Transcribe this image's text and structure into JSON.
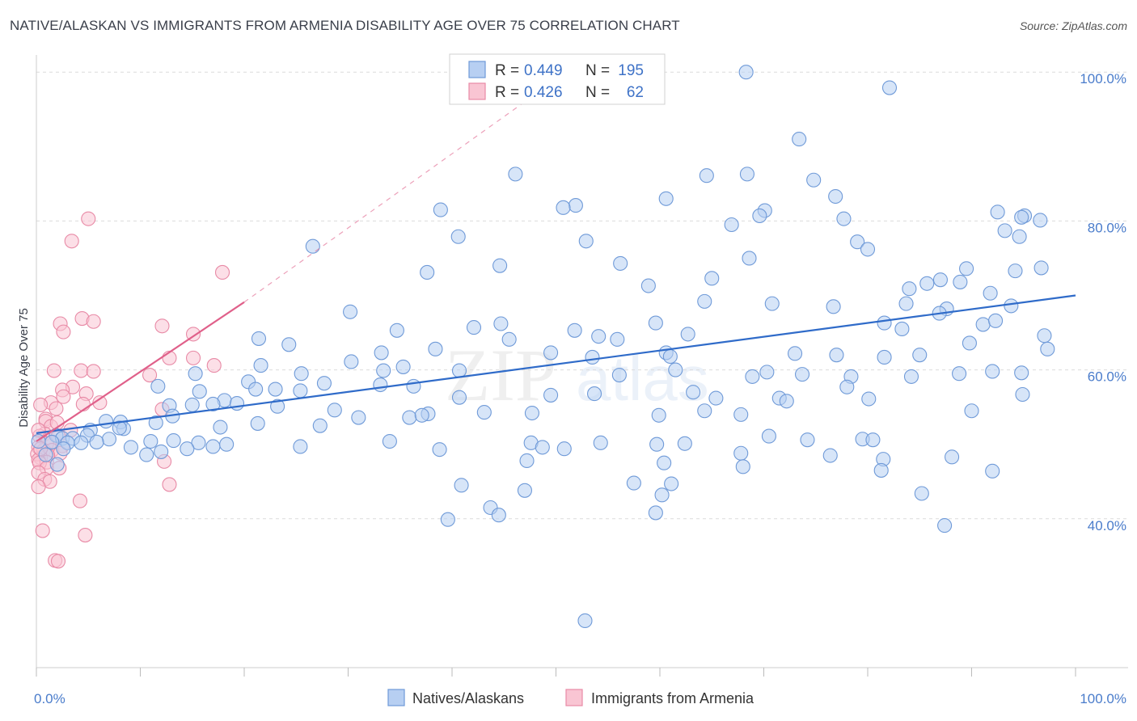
{
  "header": {
    "title": "NATIVE/ALASKAN VS IMMIGRANTS FROM ARMENIA DISABILITY AGE OVER 75 CORRELATION CHART",
    "source": "Source: ZipAtlas.com"
  },
  "colors": {
    "blue_fill": "#b7cff2",
    "blue_stroke": "#6f9ad8",
    "blue_line": "#2f6bc9",
    "pink_fill": "#f9c5d3",
    "pink_stroke": "#e88aa6",
    "pink_line": "#e0608a",
    "tick_text": "#4a7ccb",
    "grid": "#dcdcdc"
  },
  "legend": {
    "r_label": "R =",
    "n_label": "N =",
    "series": [
      {
        "r": "0.449",
        "n": "195"
      },
      {
        "r": "0.426",
        "n": "62"
      }
    ]
  },
  "bottom_legend": [
    "Natives/Alaskans",
    "Immigrants from Armenia"
  ],
  "watermark": {
    "zip": "ZIP",
    "atlas": "atlas"
  },
  "chart_data": {
    "type": "scatter",
    "title": "NATIVE/ALASKAN VS IMMIGRANTS FROM ARMENIA DISABILITY AGE OVER 75 CORRELATION CHART",
    "xlabel": "",
    "ylabel": "Disability Age Over 75",
    "xlim": [
      0,
      100
    ],
    "ylim": [
      20,
      101
    ],
    "x_tick_labels": [
      "0.0%",
      "100.0%"
    ],
    "y_ticks": [
      40,
      60,
      80,
      100
    ],
    "y_tick_labels": [
      "40.0%",
      "60.0%",
      "80.0%",
      "100.0%"
    ],
    "grid": "horizontal dashed",
    "legend_position": "top-center",
    "series": [
      {
        "name": "Natives/Alaskans",
        "color": "#6f9ad8",
        "R": 0.449,
        "N": 195,
        "trend": {
          "x": [
            0,
            100
          ],
          "y": [
            51.5,
            70.0
          ],
          "style": "solid"
        },
        "points": [
          [
            68.3,
            100
          ],
          [
            82.1,
            97.9
          ],
          [
            73.4,
            91.0
          ],
          [
            46.1,
            86.3
          ],
          [
            64.5,
            86.1
          ],
          [
            68.4,
            86.3
          ],
          [
            74.8,
            85.5
          ],
          [
            60.6,
            83.0
          ],
          [
            76.9,
            83.3
          ],
          [
            51.9,
            82.1
          ],
          [
            50.7,
            81.8
          ],
          [
            70.1,
            81.4
          ],
          [
            38.9,
            81.5
          ],
          [
            69.6,
            80.7
          ],
          [
            77.7,
            80.3
          ],
          [
            92.5,
            81.2
          ],
          [
            95.1,
            80.7
          ],
          [
            96.6,
            80.1
          ],
          [
            94.8,
            80.5
          ],
          [
            66.9,
            79.5
          ],
          [
            93.2,
            78.7
          ],
          [
            40.6,
            77.9
          ],
          [
            52.9,
            77.3
          ],
          [
            79.0,
            77.2
          ],
          [
            94.6,
            77.9
          ],
          [
            26.6,
            76.6
          ],
          [
            80.0,
            76.2
          ],
          [
            68.6,
            75.0
          ],
          [
            56.2,
            74.3
          ],
          [
            44.6,
            74.0
          ],
          [
            37.6,
            73.1
          ],
          [
            96.7,
            73.7
          ],
          [
            89.5,
            73.6
          ],
          [
            94.2,
            73.3
          ],
          [
            65.0,
            72.3
          ],
          [
            87.0,
            72.1
          ],
          [
            88.9,
            71.8
          ],
          [
            85.7,
            71.6
          ],
          [
            58.9,
            71.3
          ],
          [
            84.0,
            70.9
          ],
          [
            91.8,
            70.3
          ],
          [
            64.3,
            69.2
          ],
          [
            70.8,
            68.9
          ],
          [
            76.7,
            68.5
          ],
          [
            83.7,
            68.9
          ],
          [
            87.6,
            68.2
          ],
          [
            93.8,
            68.6
          ],
          [
            30.2,
            67.8
          ],
          [
            86.9,
            67.6
          ],
          [
            91.1,
            66.1
          ],
          [
            92.3,
            66.6
          ],
          [
            44.7,
            66.2
          ],
          [
            59.6,
            66.3
          ],
          [
            81.6,
            66.3
          ],
          [
            42.1,
            65.7
          ],
          [
            34.7,
            65.3
          ],
          [
            51.8,
            65.3
          ],
          [
            83.3,
            65.5
          ],
          [
            62.7,
            64.8
          ],
          [
            97.0,
            64.6
          ],
          [
            21.4,
            64.2
          ],
          [
            54.1,
            64.5
          ],
          [
            45.5,
            64.1
          ],
          [
            55.9,
            64.1
          ],
          [
            89.8,
            63.6
          ],
          [
            24.3,
            63.4
          ],
          [
            97.3,
            62.8
          ],
          [
            38.4,
            62.8
          ],
          [
            33.2,
            62.3
          ],
          [
            49.5,
            62.3
          ],
          [
            60.6,
            62.3
          ],
          [
            73.0,
            62.2
          ],
          [
            77.0,
            62.0
          ],
          [
            53.5,
            61.7
          ],
          [
            61.0,
            61.8
          ],
          [
            81.6,
            61.7
          ],
          [
            85.0,
            62.0
          ],
          [
            30.3,
            61.1
          ],
          [
            35.3,
            60.4
          ],
          [
            21.6,
            60.6
          ],
          [
            33.4,
            59.9
          ],
          [
            40.7,
            59.9
          ],
          [
            61.5,
            60.0
          ],
          [
            70.3,
            59.7
          ],
          [
            73.7,
            59.4
          ],
          [
            78.4,
            59.1
          ],
          [
            84.2,
            59.1
          ],
          [
            94.8,
            59.6
          ],
          [
            92.0,
            59.8
          ],
          [
            56.1,
            59.3
          ],
          [
            68.9,
            59.1
          ],
          [
            88.8,
            59.5
          ],
          [
            25.5,
            59.5
          ],
          [
            20.4,
            58.4
          ],
          [
            15.3,
            59.5
          ],
          [
            27.7,
            58.2
          ],
          [
            33.1,
            58.0
          ],
          [
            36.3,
            57.8
          ],
          [
            11.7,
            57.8
          ],
          [
            15.7,
            57.1
          ],
          [
            21.1,
            57.4
          ],
          [
            23.0,
            57.4
          ],
          [
            25.4,
            57.2
          ],
          [
            63.2,
            57.0
          ],
          [
            78.0,
            57.7
          ],
          [
            94.9,
            56.7
          ],
          [
            53.7,
            56.8
          ],
          [
            49.5,
            56.6
          ],
          [
            40.7,
            56.3
          ],
          [
            65.4,
            56.2
          ],
          [
            71.5,
            56.2
          ],
          [
            72.2,
            55.8
          ],
          [
            80.1,
            56.1
          ],
          [
            90.0,
            54.5
          ],
          [
            18.1,
            55.9
          ],
          [
            19.3,
            55.5
          ],
          [
            17.0,
            55.4
          ],
          [
            15.0,
            55.3
          ],
          [
            12.8,
            55.2
          ],
          [
            23.2,
            55.1
          ],
          [
            43.1,
            54.3
          ],
          [
            28.7,
            54.6
          ],
          [
            31.0,
            53.6
          ],
          [
            35.9,
            53.6
          ],
          [
            37.7,
            54.1
          ],
          [
            37.1,
            53.9
          ],
          [
            47.7,
            54.2
          ],
          [
            59.9,
            53.9
          ],
          [
            64.3,
            54.5
          ],
          [
            67.8,
            54.0
          ],
          [
            13.1,
            53.8
          ],
          [
            6.7,
            53.1
          ],
          [
            8.1,
            53.0
          ],
          [
            11.5,
            52.9
          ],
          [
            17.7,
            52.3
          ],
          [
            21.3,
            52.8
          ],
          [
            27.3,
            52.5
          ],
          [
            8.4,
            52.1
          ],
          [
            5.2,
            51.9
          ],
          [
            8.0,
            52.2
          ],
          [
            1.9,
            51.2
          ],
          [
            2.5,
            50.8
          ],
          [
            4.9,
            51.2
          ],
          [
            3.5,
            50.8
          ],
          [
            1.5,
            50.3
          ],
          [
            0.2,
            50.4
          ],
          [
            4.3,
            50.2
          ],
          [
            7.0,
            50.7
          ],
          [
            11.0,
            50.4
          ],
          [
            13.2,
            50.5
          ],
          [
            15.6,
            50.2
          ],
          [
            5.8,
            50.3
          ],
          [
            3.0,
            50.2
          ],
          [
            34.0,
            50.4
          ],
          [
            47.6,
            50.2
          ],
          [
            54.3,
            50.2
          ],
          [
            59.7,
            50.0
          ],
          [
            70.5,
            51.1
          ],
          [
            74.2,
            50.6
          ],
          [
            79.5,
            50.7
          ],
          [
            80.5,
            50.6
          ],
          [
            9.1,
            49.6
          ],
          [
            2.6,
            49.4
          ],
          [
            17.0,
            49.7
          ],
          [
            18.3,
            50.0
          ],
          [
            25.4,
            49.7
          ],
          [
            38.8,
            49.3
          ],
          [
            48.7,
            49.6
          ],
          [
            50.8,
            49.4
          ],
          [
            62.4,
            50.1
          ],
          [
            12.0,
            49.0
          ],
          [
            14.5,
            49.4
          ],
          [
            67.8,
            48.8
          ],
          [
            76.4,
            48.5
          ],
          [
            0.9,
            48.6
          ],
          [
            10.6,
            48.6
          ],
          [
            47.2,
            47.8
          ],
          [
            60.4,
            47.5
          ],
          [
            81.5,
            48.0
          ],
          [
            88.1,
            48.3
          ],
          [
            2.0,
            47.3
          ],
          [
            68.0,
            47.0
          ],
          [
            81.3,
            46.5
          ],
          [
            92.0,
            46.4
          ],
          [
            40.9,
            44.5
          ],
          [
            57.5,
            44.8
          ],
          [
            61.1,
            44.7
          ],
          [
            47.0,
            43.8
          ],
          [
            60.2,
            43.2
          ],
          [
            85.2,
            43.4
          ],
          [
            39.6,
            39.9
          ],
          [
            43.7,
            41.5
          ],
          [
            44.5,
            40.5
          ],
          [
            59.6,
            40.8
          ],
          [
            87.4,
            39.1
          ],
          [
            52.8,
            26.3
          ]
        ]
      },
      {
        "name": "Immigrants from Armenia",
        "color": "#e88aa6",
        "R": 0.426,
        "N": 62,
        "trend": {
          "x": [
            0,
            20
          ],
          "y": [
            50.4,
            69.1
          ],
          "style": "solid",
          "extended_dashed_to": [
            51.0,
            100
          ]
        },
        "points": [
          [
            5.0,
            80.3
          ],
          [
            3.4,
            77.3
          ],
          [
            17.9,
            73.1
          ],
          [
            4.4,
            66.9
          ],
          [
            5.5,
            66.5
          ],
          [
            2.3,
            66.2
          ],
          [
            12.1,
            65.9
          ],
          [
            15.1,
            64.8
          ],
          [
            2.6,
            65.1
          ],
          [
            12.8,
            61.6
          ],
          [
            15.1,
            61.6
          ],
          [
            17.1,
            60.6
          ],
          [
            4.3,
            59.9
          ],
          [
            1.7,
            59.9
          ],
          [
            5.5,
            59.8
          ],
          [
            10.9,
            59.3
          ],
          [
            3.5,
            57.7
          ],
          [
            2.5,
            57.3
          ],
          [
            2.6,
            56.4
          ],
          [
            4.8,
            56.8
          ],
          [
            1.4,
            55.6
          ],
          [
            0.4,
            55.3
          ],
          [
            4.5,
            55.4
          ],
          [
            1.9,
            54.8
          ],
          [
            6.1,
            55.6
          ],
          [
            0.9,
            53.4
          ],
          [
            12.1,
            54.7
          ],
          [
            0.9,
            53.1
          ],
          [
            1.4,
            52.4
          ],
          [
            2.0,
            52.9
          ],
          [
            3.3,
            51.9
          ],
          [
            2.1,
            51.1
          ],
          [
            0.8,
            51.4
          ],
          [
            0.3,
            51.1
          ],
          [
            1.4,
            50.2
          ],
          [
            2.5,
            49.8
          ],
          [
            1.0,
            50.1
          ],
          [
            0.2,
            49.6
          ],
          [
            0.7,
            49.2
          ],
          [
            1.5,
            49.2
          ],
          [
            2.3,
            48.8
          ],
          [
            1.1,
            48.5
          ],
          [
            0.4,
            48.2
          ],
          [
            0.1,
            48.7
          ],
          [
            0.2,
            47.9
          ],
          [
            1.0,
            47.6
          ],
          [
            0.3,
            47.5
          ],
          [
            1.0,
            46.8
          ],
          [
            2.2,
            46.8
          ],
          [
            0.2,
            46.2
          ],
          [
            0.8,
            45.3
          ],
          [
            1.3,
            45.0
          ],
          [
            12.3,
            47.7
          ],
          [
            12.8,
            44.6
          ],
          [
            0.2,
            44.3
          ],
          [
            4.2,
            42.4
          ],
          [
            0.6,
            38.4
          ],
          [
            4.7,
            37.8
          ],
          [
            1.8,
            34.4
          ],
          [
            2.1,
            34.3
          ],
          [
            0.2,
            51.9
          ],
          [
            0.4,
            49.4
          ]
        ]
      }
    ]
  }
}
